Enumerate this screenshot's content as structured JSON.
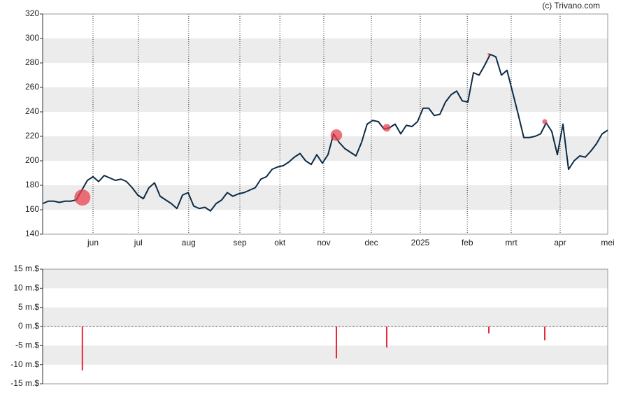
{
  "chart_data": [
    {
      "type": "line",
      "source": "(c) Trivano.com",
      "xlim": [
        0,
        101
      ],
      "ylim": [
        140,
        320
      ],
      "yticks": [
        140,
        160,
        180,
        200,
        220,
        240,
        260,
        280,
        300,
        320
      ],
      "xticks": [
        {
          "value": 9,
          "label": "jun"
        },
        {
          "value": 17.1,
          "label": "jul"
        },
        {
          "value": 26.1,
          "label": "aug"
        },
        {
          "value": 35.25,
          "label": "sep"
        },
        {
          "value": 42.4,
          "label": "okt"
        },
        {
          "value": 50.25,
          "label": "nov"
        },
        {
          "value": 58.75,
          "label": "dec"
        },
        {
          "value": 67.5,
          "label": "2025"
        },
        {
          "value": 75.9,
          "label": "feb"
        },
        {
          "value": 83.75,
          "label": "mrt"
        },
        {
          "value": 92.5,
          "label": "apr"
        },
        {
          "value": 101,
          "label": "mei"
        }
      ],
      "grid": true,
      "series": [
        {
          "color": "#0d2b45",
          "values": [
            165,
            167,
            167,
            166,
            167,
            167,
            168,
            176,
            184,
            187,
            183,
            188,
            186,
            184,
            185,
            183,
            178,
            172,
            169,
            178,
            182,
            171,
            168,
            165,
            161,
            172,
            174,
            163,
            161,
            162,
            159,
            165,
            168,
            174,
            171,
            173,
            174,
            176,
            178,
            185,
            187,
            193,
            195,
            196,
            199,
            203,
            206,
            200,
            197,
            205,
            198,
            205,
            222,
            215,
            210,
            207,
            204,
            215,
            230,
            233,
            232,
            226,
            227,
            230,
            222,
            229,
            228,
            232,
            243,
            243,
            237,
            238,
            248,
            254,
            257,
            249,
            248,
            272,
            270,
            278,
            287,
            285,
            270,
            274,
            256,
            238,
            219,
            219,
            220,
            222,
            231,
            224,
            205,
            230,
            193,
            200,
            204,
            203,
            208,
            214,
            222,
            225
          ]
        }
      ],
      "markers": {
        "color": "#e8424f",
        "x": [
          7.1,
          52.5,
          61.5,
          79.75,
          89.75
        ],
        "values": [
          170,
          221,
          227,
          287,
          232
        ]
      }
    },
    {
      "type": "bar",
      "color": "#e8283b",
      "xlim": [
        0,
        101
      ],
      "ylim": [
        -15,
        15
      ],
      "yticks": [
        {
          "value": 15,
          "label": "15 m.$"
        },
        {
          "value": 10,
          "label": "10 m.$"
        },
        {
          "value": 5,
          "label": "5 m.$"
        },
        {
          "value": 0,
          "label": "0 m.$"
        },
        {
          "value": -5,
          "label": "-5 m.$"
        },
        {
          "value": -10,
          "label": "-10 m.$"
        },
        {
          "value": -15,
          "label": "-15 m.$"
        }
      ],
      "grid": true,
      "x": [
        7.1,
        52.5,
        61.5,
        79.75,
        89.75
      ],
      "values": [
        -11.5,
        -8.3,
        -5.5,
        -1.8,
        -3.6
      ]
    }
  ]
}
